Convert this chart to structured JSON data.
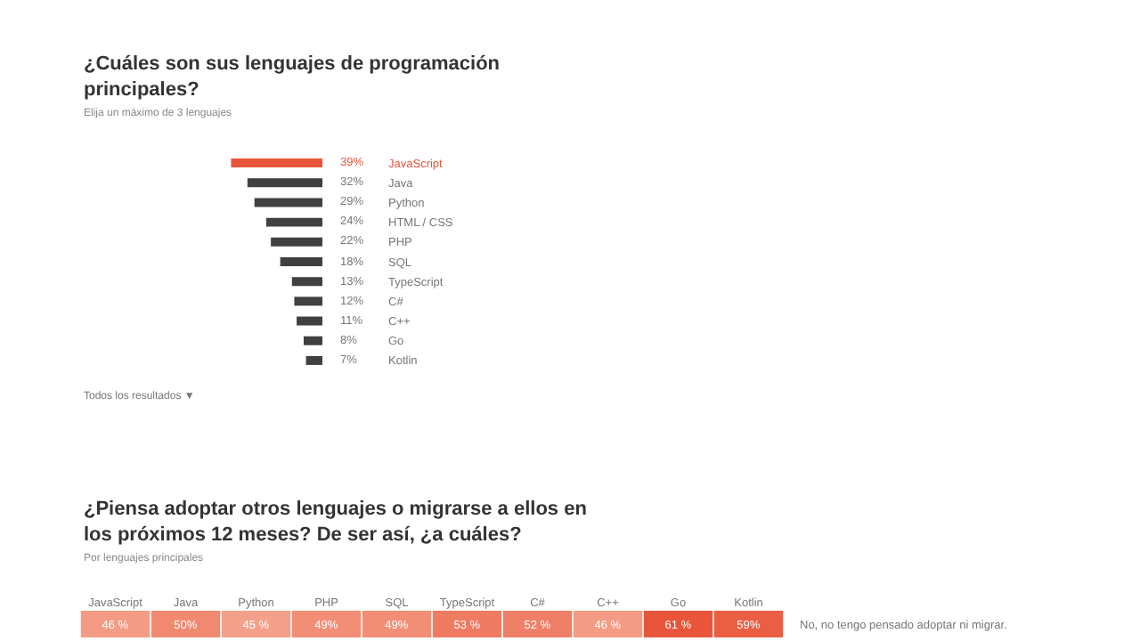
{
  "chart_data": [
    {
      "type": "bar",
      "orientation": "horizontal",
      "title": "¿Cuáles son sus lenguajes de programación principales?",
      "subtitle": "Elija un máximo de 3 lenguajes",
      "categories": [
        "JavaScript",
        "Java",
        "Python",
        "HTML / CSS",
        "PHP",
        "SQL",
        "TypeScript",
        "C#",
        "C++",
        "Go",
        "Kotlin"
      ],
      "values": [
        39,
        32,
        29,
        24,
        22,
        18,
        13,
        12,
        11,
        8,
        7
      ],
      "colors": [
        "#e8553a",
        "#404040",
        "#404040",
        "#404040",
        "#404040",
        "#404040",
        "#404040",
        "#404040",
        "#404040",
        "#404040",
        "#404040"
      ],
      "value_labels": [
        "39%",
        "32%",
        "29%",
        "24%",
        "22%",
        "18%",
        "13%",
        "12%",
        "11%",
        "8%",
        "7%"
      ],
      "tick_labels": "y",
      "annotations": [
        "Todos los resultados ▼"
      ]
    },
    {
      "type": "heatmap",
      "title": "¿Piensa adoptar otros lenguajes o migrarse a ellos en los próximos 12 meses? De ser así, ¿a cuáles?",
      "subtitle": "Por lenguajes principales",
      "categories": [
        "JavaScript",
        "Java",
        "Python",
        "PHP",
        "SQL",
        "TypeScript",
        "C#",
        "C++",
        "Go",
        "Kotlin"
      ],
      "y_categories": [
        null
      ],
      "y2_categories": [
        "No, no tengo pensado adoptar ni migrar."
      ],
      "cells": [
        [
          46,
          50,
          45,
          49,
          49,
          53,
          52,
          46,
          61,
          59
        ]
      ],
      "cell_labels": [
        [
          "46 %",
          "50%",
          "45 %",
          "49%",
          "49%",
          "53 %",
          "52 %",
          "46 %",
          "61 %",
          "59%"
        ]
      ],
      "colors": [
        "#f5a08a",
        "#e8553a"
      ]
    }
  ]
}
